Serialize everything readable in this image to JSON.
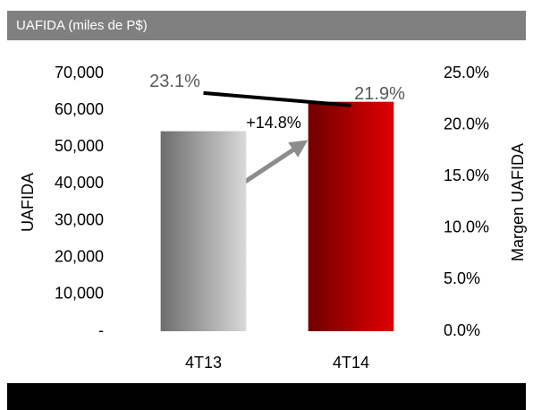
{
  "chart_data": {
    "type": "bar",
    "title": "UAFIDA (miles de P$)",
    "categories": [
      "4T13",
      "4T14"
    ],
    "series": [
      {
        "name": "UAFIDA",
        "colors": [
          "#d9d9d9",
          "#e00000"
        ],
        "values": [
          54300,
          62300
        ]
      },
      {
        "name": "Margen UAFIDA",
        "type": "line",
        "axis": "y2",
        "color": "#000000",
        "values": [
          23.1,
          21.9
        ],
        "value_labels": [
          "23.1%",
          "21.9%"
        ]
      }
    ],
    "ylabel": "UAFIDA",
    "y2label": "Margen UAFIDA",
    "ylim": [
      0,
      70000
    ],
    "yticks": [
      {
        "value": 0,
        "label": "-"
      },
      {
        "value": 10000,
        "label": "10,000"
      },
      {
        "value": 20000,
        "label": "20,000"
      },
      {
        "value": 30000,
        "label": "30,000"
      },
      {
        "value": 40000,
        "label": "40,000"
      },
      {
        "value": 50000,
        "label": "50,000"
      },
      {
        "value": 60000,
        "label": "60,000"
      },
      {
        "value": 70000,
        "label": "70,000"
      }
    ],
    "y2lim": [
      0,
      25
    ],
    "y2ticks": [
      {
        "value": 0,
        "label": "0.0%"
      },
      {
        "value": 5,
        "label": "5.0%"
      },
      {
        "value": 10,
        "label": "10.0%"
      },
      {
        "value": 15,
        "label": "15.0%"
      },
      {
        "value": 20,
        "label": "20.0%"
      },
      {
        "value": 25,
        "label": "25.0%"
      }
    ],
    "annotation": "+14.8%",
    "grid": false
  }
}
